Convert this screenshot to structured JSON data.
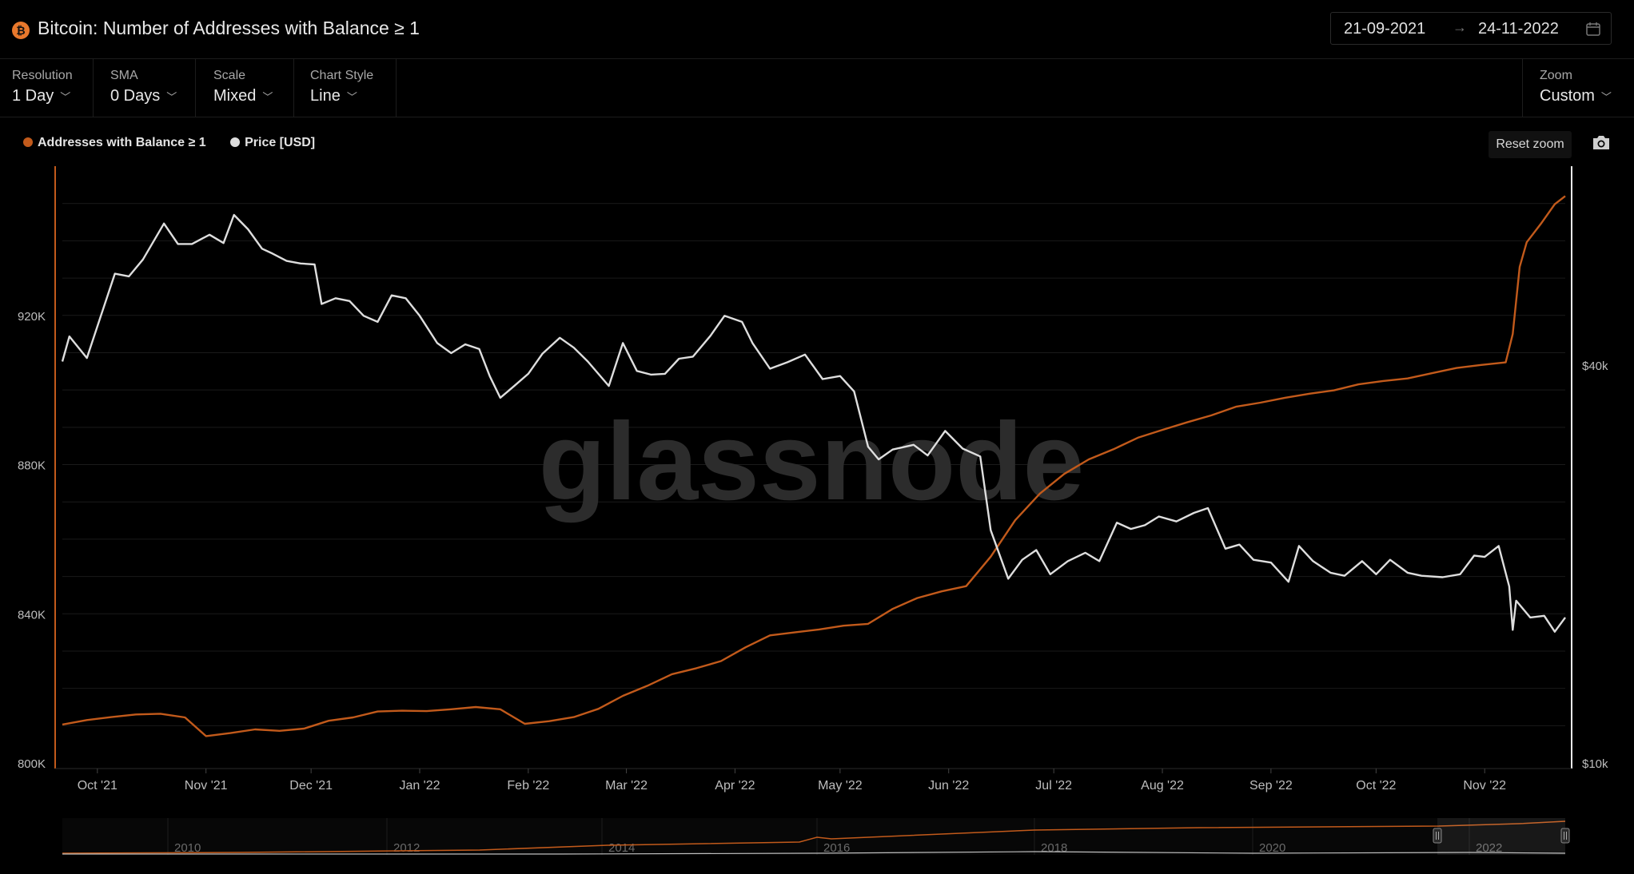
{
  "header": {
    "title": "Bitcoin: Number of Addresses with Balance ≥ 1",
    "date_from": "21-09-2021",
    "date_arrow": "→",
    "date_to": "24-11-2022"
  },
  "controls": {
    "resolution": {
      "label": "Resolution",
      "value": "1 Day"
    },
    "sma": {
      "label": "SMA",
      "value": "0 Days"
    },
    "scale": {
      "label": "Scale",
      "value": "Mixed"
    },
    "chart_style": {
      "label": "Chart Style",
      "value": "Line"
    },
    "zoom": {
      "label": "Zoom",
      "value": "Custom"
    },
    "reset_zoom": "Reset zoom"
  },
  "legend": [
    {
      "label": "Addresses with Balance ≥ 1",
      "color": "#c25a1b"
    },
    {
      "label": "Price [USD]",
      "color": "#dedede"
    }
  ],
  "watermark": "glassnode",
  "colors": {
    "addresses": "#c25a1b",
    "price": "#dedede",
    "grid": "#1a1a1a",
    "axis_text": "#bdbdbd"
  },
  "chart_data": {
    "type": "line",
    "title": "Bitcoin: Number of Addresses with Balance ≥ 1",
    "x_range": [
      "2021-09-21",
      "2022-11-24"
    ],
    "x_ticks": [
      {
        "label": "Oct '21",
        "date": "2021-10-01"
      },
      {
        "label": "Nov '21",
        "date": "2021-11-01"
      },
      {
        "label": "Dec '21",
        "date": "2021-12-01"
      },
      {
        "label": "Jan '22",
        "date": "2022-01-01"
      },
      {
        "label": "Feb '22",
        "date": "2022-02-01"
      },
      {
        "label": "Mar '22",
        "date": "2022-03-01"
      },
      {
        "label": "Apr '22",
        "date": "2022-04-01"
      },
      {
        "label": "May '22",
        "date": "2022-05-01"
      },
      {
        "label": "Jun '22",
        "date": "2022-06-01"
      },
      {
        "label": "Jul '22",
        "date": "2022-07-01"
      },
      {
        "label": "Aug '22",
        "date": "2022-08-01"
      },
      {
        "label": "Sep '22",
        "date": "2022-09-01"
      },
      {
        "label": "Oct '22",
        "date": "2022-10-01"
      },
      {
        "label": "Nov '22",
        "date": "2022-11-01"
      }
    ],
    "y_left": {
      "scale": "linear",
      "min": 800000,
      "max": 960000,
      "ticks": [
        {
          "value": 800000,
          "label": "800K"
        },
        {
          "value": 840000,
          "label": "840K"
        },
        {
          "value": 880000,
          "label": "880K"
        },
        {
          "value": 920000,
          "label": "920K"
        }
      ]
    },
    "y_right": {
      "scale": "log",
      "min": 10000,
      "max": 80000,
      "ticks": [
        {
          "value": 10000,
          "label": "$10k"
        },
        {
          "value": 40000,
          "label": "$40k"
        }
      ]
    },
    "series": [
      {
        "name": "Addresses with Balance ≥ 1",
        "axis": "left",
        "points": [
          [
            "2021-09-21",
            810300
          ],
          [
            "2021-09-28",
            811500
          ],
          [
            "2021-10-05",
            812300
          ],
          [
            "2021-10-12",
            813000
          ],
          [
            "2021-10-19",
            813200
          ],
          [
            "2021-10-26",
            812200
          ],
          [
            "2021-11-01",
            807200
          ],
          [
            "2021-11-08",
            808000
          ],
          [
            "2021-11-15",
            809000
          ],
          [
            "2021-11-22",
            808600
          ],
          [
            "2021-11-29",
            809200
          ],
          [
            "2021-12-06",
            811300
          ],
          [
            "2021-12-13",
            812200
          ],
          [
            "2021-12-20",
            813800
          ],
          [
            "2021-12-27",
            814000
          ],
          [
            "2022-01-03",
            813900
          ],
          [
            "2022-01-10",
            814400
          ],
          [
            "2022-01-17",
            815000
          ],
          [
            "2022-01-24",
            814400
          ],
          [
            "2022-01-31",
            810500
          ],
          [
            "2022-02-07",
            811200
          ],
          [
            "2022-02-14",
            812300
          ],
          [
            "2022-02-21",
            814500
          ],
          [
            "2022-02-28",
            818000
          ],
          [
            "2022-03-07",
            820700
          ],
          [
            "2022-03-14",
            823800
          ],
          [
            "2022-03-21",
            825400
          ],
          [
            "2022-03-28",
            827300
          ],
          [
            "2022-04-04",
            831000
          ],
          [
            "2022-04-11",
            834200
          ],
          [
            "2022-04-18",
            835000
          ],
          [
            "2022-04-25",
            835800
          ],
          [
            "2022-05-02",
            836800
          ],
          [
            "2022-05-09",
            837300
          ],
          [
            "2022-05-16",
            841300
          ],
          [
            "2022-05-23",
            844200
          ],
          [
            "2022-05-30",
            846000
          ],
          [
            "2022-06-06",
            847400
          ],
          [
            "2022-06-13",
            855300
          ],
          [
            "2022-06-20",
            865100
          ],
          [
            "2022-06-27",
            872200
          ],
          [
            "2022-07-04",
            877500
          ],
          [
            "2022-07-11",
            881400
          ],
          [
            "2022-07-18",
            884100
          ],
          [
            "2022-07-25",
            887200
          ],
          [
            "2022-08-01",
            889300
          ],
          [
            "2022-08-08",
            891300
          ],
          [
            "2022-08-15",
            893200
          ],
          [
            "2022-08-22",
            895500
          ],
          [
            "2022-08-29",
            896600
          ],
          [
            "2022-09-05",
            897900
          ],
          [
            "2022-09-12",
            899000
          ],
          [
            "2022-09-19",
            899900
          ],
          [
            "2022-09-26",
            901500
          ],
          [
            "2022-10-03",
            902400
          ],
          [
            "2022-10-10",
            903100
          ],
          [
            "2022-10-17",
            904500
          ],
          [
            "2022-10-24",
            905900
          ],
          [
            "2022-10-31",
            906700
          ],
          [
            "2022-11-07",
            907400
          ],
          [
            "2022-11-09",
            915000
          ],
          [
            "2022-11-11",
            933000
          ],
          [
            "2022-11-13",
            939600
          ],
          [
            "2022-11-17",
            944500
          ],
          [
            "2022-11-21",
            949800
          ],
          [
            "2022-11-24",
            952000
          ]
        ]
      },
      {
        "name": "Price [USD]",
        "axis": "right",
        "points": [
          [
            "2021-09-21",
            40500
          ],
          [
            "2021-09-23",
            44200
          ],
          [
            "2021-09-28",
            41000
          ],
          [
            "2021-10-02",
            47500
          ],
          [
            "2021-10-06",
            55000
          ],
          [
            "2021-10-10",
            54500
          ],
          [
            "2021-10-14",
            57800
          ],
          [
            "2021-10-20",
            65500
          ],
          [
            "2021-10-24",
            61000
          ],
          [
            "2021-10-28",
            61000
          ],
          [
            "2021-11-02",
            63000
          ],
          [
            "2021-11-06",
            61200
          ],
          [
            "2021-11-09",
            67500
          ],
          [
            "2021-11-13",
            64200
          ],
          [
            "2021-11-17",
            60000
          ],
          [
            "2021-11-20",
            59000
          ],
          [
            "2021-11-24",
            57500
          ],
          [
            "2021-11-28",
            57000
          ],
          [
            "2021-12-02",
            56800
          ],
          [
            "2021-12-04",
            49500
          ],
          [
            "2021-12-08",
            50500
          ],
          [
            "2021-12-12",
            50000
          ],
          [
            "2021-12-16",
            47500
          ],
          [
            "2021-12-20",
            46500
          ],
          [
            "2021-12-24",
            51000
          ],
          [
            "2021-12-28",
            50500
          ],
          [
            "2022-01-01",
            47500
          ],
          [
            "2022-01-06",
            43200
          ],
          [
            "2022-01-10",
            41700
          ],
          [
            "2022-01-14",
            43000
          ],
          [
            "2022-01-18",
            42300
          ],
          [
            "2022-01-21",
            38500
          ],
          [
            "2022-01-24",
            35700
          ],
          [
            "2022-01-28",
            37200
          ],
          [
            "2022-02-01",
            38800
          ],
          [
            "2022-02-05",
            41600
          ],
          [
            "2022-02-10",
            44000
          ],
          [
            "2022-02-14",
            42500
          ],
          [
            "2022-02-18",
            40500
          ],
          [
            "2022-02-24",
            37200
          ],
          [
            "2022-02-28",
            43200
          ],
          [
            "2022-03-04",
            39200
          ],
          [
            "2022-03-08",
            38700
          ],
          [
            "2022-03-12",
            38800
          ],
          [
            "2022-03-16",
            40900
          ],
          [
            "2022-03-20",
            41200
          ],
          [
            "2022-03-25",
            44300
          ],
          [
            "2022-03-29",
            47500
          ],
          [
            "2022-04-03",
            46500
          ],
          [
            "2022-04-06",
            43200
          ],
          [
            "2022-04-11",
            39500
          ],
          [
            "2022-04-16",
            40400
          ],
          [
            "2022-04-21",
            41500
          ],
          [
            "2022-04-26",
            38100
          ],
          [
            "2022-05-01",
            38500
          ],
          [
            "2022-05-05",
            36500
          ],
          [
            "2022-05-09",
            30100
          ],
          [
            "2022-05-12",
            28800
          ],
          [
            "2022-05-16",
            29800
          ],
          [
            "2022-05-22",
            30300
          ],
          [
            "2022-05-26",
            29200
          ],
          [
            "2022-05-31",
            31800
          ],
          [
            "2022-06-05",
            29900
          ],
          [
            "2022-06-10",
            29100
          ],
          [
            "2022-06-13",
            22500
          ],
          [
            "2022-06-18",
            19000
          ],
          [
            "2022-06-22",
            20300
          ],
          [
            "2022-06-26",
            21000
          ],
          [
            "2022-06-30",
            19300
          ],
          [
            "2022-07-05",
            20200
          ],
          [
            "2022-07-10",
            20800
          ],
          [
            "2022-07-14",
            20200
          ],
          [
            "2022-07-19",
            23100
          ],
          [
            "2022-07-23",
            22600
          ],
          [
            "2022-07-27",
            22900
          ],
          [
            "2022-07-31",
            23600
          ],
          [
            "2022-08-05",
            23200
          ],
          [
            "2022-08-10",
            23900
          ],
          [
            "2022-08-14",
            24300
          ],
          [
            "2022-08-19",
            21100
          ],
          [
            "2022-08-23",
            21400
          ],
          [
            "2022-08-27",
            20300
          ],
          [
            "2022-09-01",
            20100
          ],
          [
            "2022-09-06",
            18800
          ],
          [
            "2022-09-09",
            21300
          ],
          [
            "2022-09-13",
            20200
          ],
          [
            "2022-09-18",
            19400
          ],
          [
            "2022-09-22",
            19200
          ],
          [
            "2022-09-27",
            20200
          ],
          [
            "2022-10-01",
            19300
          ],
          [
            "2022-10-05",
            20300
          ],
          [
            "2022-10-10",
            19400
          ],
          [
            "2022-10-14",
            19200
          ],
          [
            "2022-10-20",
            19100
          ],
          [
            "2022-10-25",
            19300
          ],
          [
            "2022-10-29",
            20600
          ],
          [
            "2022-11-01",
            20500
          ],
          [
            "2022-11-05",
            21300
          ],
          [
            "2022-11-08",
            18500
          ],
          [
            "2022-11-09",
            15900
          ],
          [
            "2022-11-10",
            17600
          ],
          [
            "2022-11-14",
            16600
          ],
          [
            "2022-11-18",
            16700
          ],
          [
            "2022-11-21",
            15800
          ],
          [
            "2022-11-24",
            16600
          ]
        ]
      }
    ],
    "navigator": {
      "x_ticks": [
        "2010",
        "2012",
        "2014",
        "2016",
        "2018",
        "2020",
        "2022"
      ]
    }
  }
}
